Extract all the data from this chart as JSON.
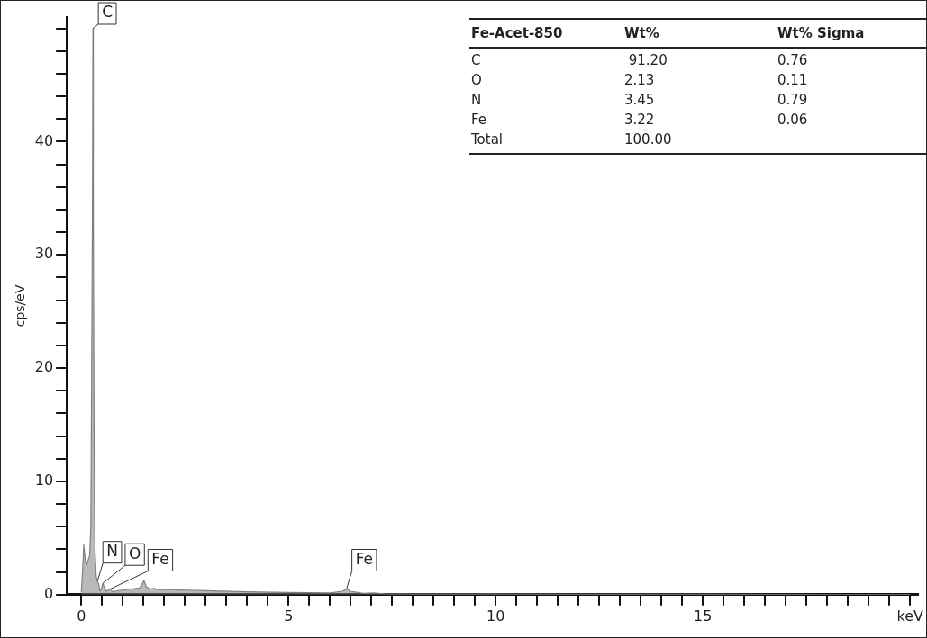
{
  "chart_data": {
    "type": "area",
    "ylabel": "cps/eV",
    "x": [
      0,
      0.03,
      0.06,
      0.09,
      0.12,
      0.16,
      0.2,
      0.23,
      0.25,
      0.27,
      0.28,
      0.29,
      0.31,
      0.33,
      0.36,
      0.39,
      0.42,
      0.45,
      0.48,
      0.52,
      0.56,
      0.6,
      0.65,
      0.7,
      0.75,
      0.8,
      0.9,
      1.0,
      1.2,
      1.4,
      1.45,
      1.51,
      1.57,
      1.65,
      1.76,
      1.85,
      2.0,
      2.5,
      3,
      4,
      5,
      6,
      6.3,
      6.4,
      6.5,
      6.8,
      7.06,
      7.3,
      8,
      10,
      12,
      15,
      18,
      20
    ],
    "values": [
      0.2,
      2.0,
      4.4,
      3.2,
      2.6,
      3.0,
      3.4,
      6,
      20,
      35,
      50,
      34,
      12,
      4,
      1.6,
      1.2,
      0.9,
      0.3,
      0.5,
      1.0,
      0.6,
      0.3,
      0.4,
      0.5,
      0.25,
      0.3,
      0.35,
      0.4,
      0.5,
      0.6,
      0.8,
      1.25,
      0.7,
      0.5,
      0.55,
      0.45,
      0.45,
      0.4,
      0.35,
      0.25,
      0.2,
      0.15,
      0.3,
      0.5,
      0.3,
      0.12,
      0.15,
      0.08,
      0.06,
      0.05,
      0.04,
      0.03,
      0.02,
      0.02
    ],
    "color": "#808080",
    "xlim": [
      -0.35,
      20.2
    ],
    "ylim": [
      0,
      51
    ],
    "xticks": [
      {
        "value": 0,
        "label": "0"
      },
      {
        "value": 0.5,
        "label": null
      },
      {
        "value": 1,
        "label": null
      },
      {
        "value": 1.5,
        "label": null
      },
      {
        "value": 2,
        "label": null
      },
      {
        "value": 2.5,
        "label": null
      },
      {
        "value": 3,
        "label": null
      },
      {
        "value": 3.5,
        "label": null
      },
      {
        "value": 4,
        "label": null
      },
      {
        "value": 4.5,
        "label": null
      },
      {
        "value": 5,
        "label": "5"
      },
      {
        "value": 5.5,
        "label": null
      },
      {
        "value": 6,
        "label": null
      },
      {
        "value": 6.5,
        "label": null
      },
      {
        "value": 7,
        "label": null
      },
      {
        "value": 7.5,
        "label": null
      },
      {
        "value": 8,
        "label": null
      },
      {
        "value": 8.5,
        "label": null
      },
      {
        "value": 9,
        "label": null
      },
      {
        "value": 9.5,
        "label": null
      },
      {
        "value": 10,
        "label": "10"
      },
      {
        "value": 10.5,
        "label": null
      },
      {
        "value": 11,
        "label": null
      },
      {
        "value": 11.5,
        "label": null
      },
      {
        "value": 12,
        "label": null
      },
      {
        "value": 12.5,
        "label": null
      },
      {
        "value": 13,
        "label": null
      },
      {
        "value": 13.5,
        "label": null
      },
      {
        "value": 14,
        "label": null
      },
      {
        "value": 14.5,
        "label": null
      },
      {
        "value": 15,
        "label": "15"
      },
      {
        "value": 15.5,
        "label": null
      },
      {
        "value": 16,
        "label": null
      },
      {
        "value": 16.5,
        "label": null
      },
      {
        "value": 17,
        "label": null
      },
      {
        "value": 17.5,
        "label": null
      },
      {
        "value": 18,
        "label": null
      },
      {
        "value": 18.5,
        "label": null
      },
      {
        "value": 19,
        "label": null
      },
      {
        "value": 19.5,
        "label": null
      },
      {
        "value": 20,
        "label": "keV"
      }
    ],
    "yticks": [
      {
        "value": 0,
        "label": "0"
      },
      {
        "value": 2,
        "label": null
      },
      {
        "value": 4,
        "label": null
      },
      {
        "value": 6,
        "label": null
      },
      {
        "value": 8,
        "label": null
      },
      {
        "value": 10,
        "label": "10"
      },
      {
        "value": 12,
        "label": null
      },
      {
        "value": 14,
        "label": null
      },
      {
        "value": 16,
        "label": null
      },
      {
        "value": 18,
        "label": null
      },
      {
        "value": 20,
        "label": "20"
      },
      {
        "value": 22,
        "label": null
      },
      {
        "value": 24,
        "label": null
      },
      {
        "value": 26,
        "label": null
      },
      {
        "value": 28,
        "label": null
      },
      {
        "value": 30,
        "label": "30"
      },
      {
        "value": 32,
        "label": null
      },
      {
        "value": 34,
        "label": null
      },
      {
        "value": 36,
        "label": null
      },
      {
        "value": 38,
        "label": null
      },
      {
        "value": 40,
        "label": "40"
      },
      {
        "value": 42,
        "label": null
      },
      {
        "value": 44,
        "label": null
      },
      {
        "value": 46,
        "label": null
      },
      {
        "value": 48,
        "label": null
      },
      {
        "value": 50,
        "label": null
      }
    ],
    "grid": false,
    "legend": false,
    "annotations": [
      {
        "text": "C",
        "x": 0.28,
        "y": 50
      },
      {
        "text": "N",
        "x": 0.39,
        "y": 1.2
      },
      {
        "text": "O",
        "x": 0.52,
        "y": 1.0
      },
      {
        "text": "Fe",
        "x": 0.7,
        "y": 0.5
      },
      {
        "text": "Fe",
        "x": 6.4,
        "y": 0.5
      },
      "Fe-Acet-850",
      "Wt%",
      "Wt% Sigma",
      "C",
      " 91.20",
      "0.76",
      "O",
      "2.13",
      "0.11",
      "N",
      "3.45",
      "0.79",
      "Fe",
      "3.22",
      "0.06",
      "Total",
      "100.00"
    ]
  }
}
